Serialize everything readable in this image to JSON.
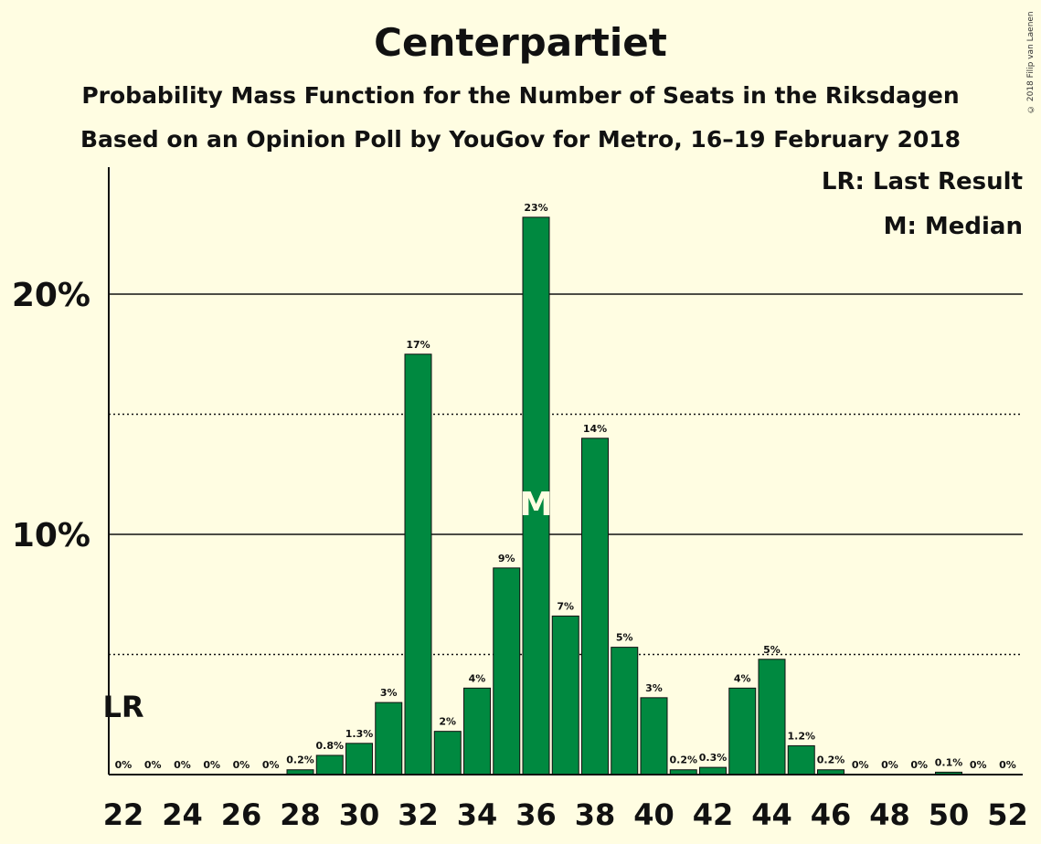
{
  "header": {
    "title": "Centerpartiet",
    "subtitle1": "Probability Mass Function for the Number of Seats in the Riksdagen",
    "subtitle2": "Based on an Opinion Poll by YouGov for Metro, 16–19 February 2018",
    "copyright": "© 2018 Filip van Laenen"
  },
  "legend": {
    "last_result": "LR: Last Result",
    "median": "M: Median"
  },
  "colors": {
    "bar": "#008940",
    "background": "#fffde2"
  },
  "chart_data": {
    "type": "bar",
    "x": [
      22,
      23,
      24,
      25,
      26,
      27,
      28,
      29,
      30,
      31,
      32,
      33,
      34,
      35,
      36,
      37,
      38,
      39,
      40,
      41,
      42,
      43,
      44,
      45,
      46,
      47,
      48,
      49,
      50,
      51,
      52
    ],
    "values": [
      0,
      0,
      0,
      0,
      0,
      0,
      0.2,
      0.8,
      1.3,
      3,
      17.5,
      1.8,
      3.6,
      8.6,
      23.2,
      6.6,
      14,
      5.3,
      3.2,
      0.2,
      0.3,
      3.6,
      4.8,
      1.2,
      0.2,
      0,
      0,
      0,
      0.1,
      0,
      0
    ],
    "labels": [
      "0%",
      "0%",
      "0%",
      "0%",
      "0%",
      "0%",
      "0.2%",
      "0.8%",
      "1.3%",
      "3%",
      "17%",
      "2%",
      "4%",
      "9%",
      "23%",
      "7%",
      "14%",
      "5%",
      "3%",
      "0.2%",
      "0.3%",
      "4%",
      "5%",
      "1.2%",
      "0.2%",
      "0%",
      "0%",
      "0%",
      "0.1%",
      "0%",
      "0%"
    ],
    "x_tick_labels": [
      "22",
      "24",
      "26",
      "28",
      "30",
      "32",
      "34",
      "36",
      "38",
      "40",
      "42",
      "44",
      "46",
      "48",
      "50",
      "52"
    ],
    "y_tick_labels": [
      "10%",
      "20%"
    ],
    "solid_gridlines": [
      10,
      20
    ],
    "dotted_gridlines": [
      5,
      15
    ],
    "ylim": [
      0,
      25
    ],
    "median_seat": 36,
    "median_marker": "M",
    "last_result_seat": 22,
    "last_result_marker": "LR"
  }
}
